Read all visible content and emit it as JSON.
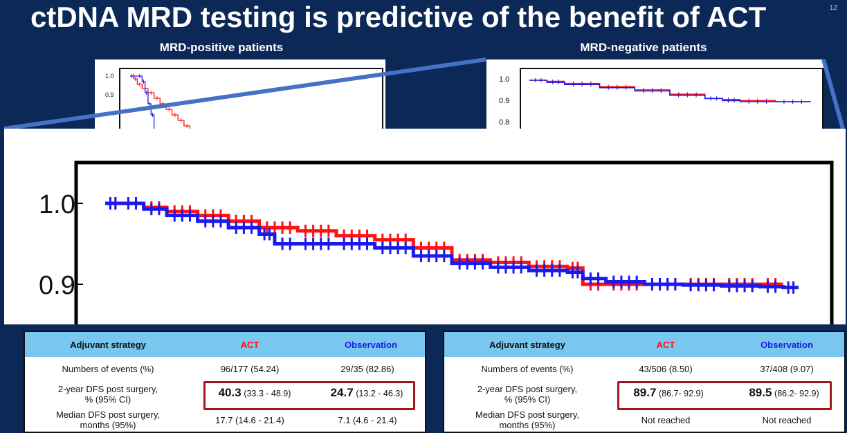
{
  "slide": {
    "title": "ctDNA MRD testing is predictive of the benefit of ACT",
    "slide_number": "12"
  },
  "panels": {
    "left_title": "MRD-positive patients",
    "right_title": "MRD-negative patients"
  },
  "colors": {
    "background": "#0c2856",
    "act": "#ff1111",
    "observation": "#1a1aee",
    "table_header": "#79c6ee",
    "highlight": "#a3141b",
    "connector": "#4472c4"
  },
  "chart_data": [
    {
      "type": "line",
      "title": "MRD-positive patients",
      "y_ticks": [
        "1.0",
        "0.9"
      ],
      "series": [
        {
          "color": "#ff1111",
          "x": [
            0,
            0.6,
            1.2,
            2,
            3,
            4,
            5,
            6,
            7,
            8,
            9,
            10,
            11,
            12
          ],
          "y": [
            1.0,
            0.99,
            0.97,
            0.955,
            0.94,
            0.92,
            0.9,
            0.88,
            0.86,
            0.84,
            0.82,
            0.8,
            0.785,
            0.77
          ]
        },
        {
          "color": "#1a1aee",
          "x": [
            0,
            1.2,
            2,
            2.5,
            3,
            3.5,
            4,
            5
          ],
          "y": [
            1.0,
            1.0,
            0.98,
            0.94,
            0.9,
            0.86,
            0.8,
            0.77
          ]
        }
      ]
    },
    {
      "type": "line",
      "title": "MRD-negative patients",
      "y_ticks": [
        "1.0",
        "0.9",
        "0.8"
      ],
      "series": [
        {
          "color": "#ff1111",
          "x": [
            0,
            5,
            10,
            20,
            30,
            40,
            50,
            55,
            60,
            70,
            80
          ],
          "y": [
            1.0,
            0.995,
            0.985,
            0.97,
            0.955,
            0.935,
            0.915,
            0.91,
            0.905,
            0.9,
            0.9
          ]
        },
        {
          "color": "#1a1aee",
          "x": [
            0,
            5,
            10,
            20,
            30,
            40,
            50,
            55,
            60,
            70,
            80
          ],
          "y": [
            1.0,
            0.99,
            0.98,
            0.965,
            0.95,
            0.93,
            0.915,
            0.905,
            0.9,
            0.9,
            0.898
          ]
        }
      ]
    },
    {
      "type": "line",
      "y_ticks": [
        "1.0",
        "0.9"
      ],
      "series": [
        {
          "color": "#ff1111",
          "x": [
            0,
            2,
            5,
            8,
            12,
            16,
            20,
            25,
            30,
            35,
            40,
            45,
            50,
            55,
            60,
            62,
            65,
            70,
            75,
            80,
            85,
            88
          ],
          "y": [
            1.0,
            1.0,
            0.995,
            0.99,
            0.985,
            0.978,
            0.97,
            0.966,
            0.96,
            0.955,
            0.945,
            0.93,
            0.927,
            0.922,
            0.92,
            0.9,
            0.9,
            0.9,
            0.9,
            0.9,
            0.9,
            0.9
          ]
        },
        {
          "color": "#1a1aee",
          "x": [
            0,
            2,
            5,
            8,
            12,
            16,
            20,
            22,
            25,
            30,
            35,
            40,
            45,
            50,
            55,
            60,
            62,
            65,
            70,
            75,
            80,
            85,
            88,
            90
          ],
          "y": [
            1.0,
            1.0,
            0.993,
            0.985,
            0.978,
            0.97,
            0.962,
            0.95,
            0.95,
            0.95,
            0.945,
            0.935,
            0.926,
            0.921,
            0.917,
            0.915,
            0.907,
            0.903,
            0.9,
            0.899,
            0.898,
            0.897,
            0.896,
            0.896
          ]
        }
      ]
    }
  ],
  "tables": [
    {
      "header": [
        "Adjuvant strategy",
        "ACT",
        "Observation"
      ],
      "rows": [
        {
          "label": "Numbers of events (%)",
          "act": "96/177 (54.24)",
          "obs": "29/35 (82.86)"
        },
        {
          "label_line1": "2-year DFS post surgery,",
          "label_line2": "% (95% CI)",
          "act_big": "40.3",
          "act_ci": "(33.3 - 48.9)",
          "obs_big": "24.7",
          "obs_ci": "(13.2 - 46.3)"
        },
        {
          "label_line1": "Median DFS post surgery,",
          "label_line2": "months (95%)",
          "act": "17.7 (14.6 - 21.4)",
          "obs": "7.1 (4.6 - 21.4)"
        }
      ]
    },
    {
      "header": [
        "Adjuvant strategy",
        "ACT",
        "Observation"
      ],
      "rows": [
        {
          "label": "Numbers of events (%)",
          "act": "43/506 (8.50)",
          "obs": "37/408 (9.07)"
        },
        {
          "label_line1": "2-year DFS post surgery,",
          "label_line2": "% (95% CI)",
          "act_big": "89.7",
          "act_ci": "(86.7- 92.9)",
          "obs_big": "89.5",
          "obs_ci": "(86.2- 92.9)"
        },
        {
          "label_line1": "Median DFS post surgery,",
          "label_line2": "months (95%)",
          "act": "Not reached",
          "obs": "Not reached"
        }
      ]
    }
  ]
}
